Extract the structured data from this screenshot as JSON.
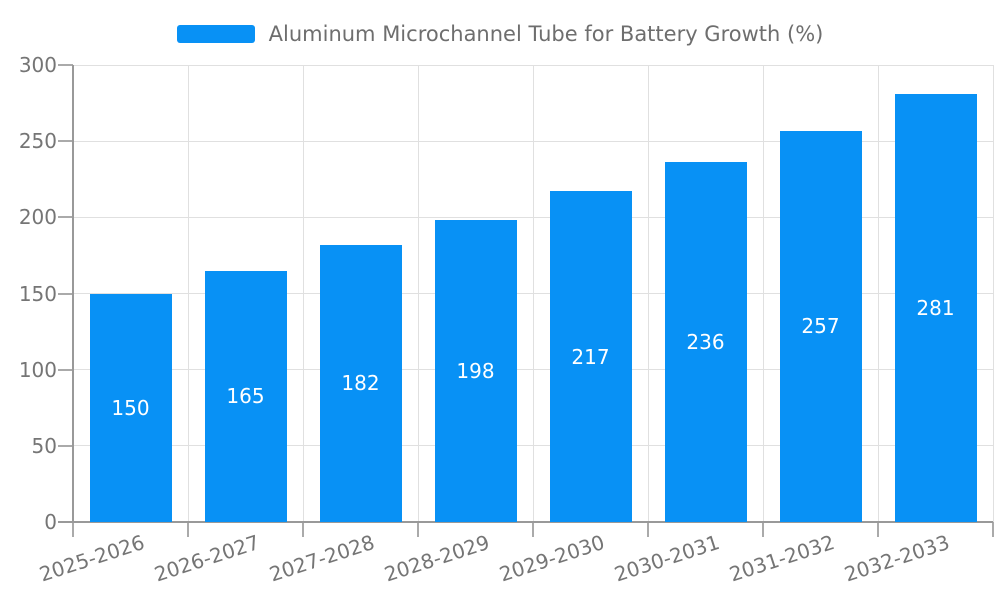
{
  "legend": {
    "label": "Aluminum Microchannel Tube for Battery Growth (%)"
  },
  "chart_data": {
    "type": "bar",
    "title": "Aluminum Microchannel Tube for Battery Growth (%)",
    "series_name": "Aluminum Microchannel Tube for Battery Growth (%)",
    "categories": [
      "2025-2026",
      "2026-2027",
      "2027-2028",
      "2028-2029",
      "2029-2030",
      "2030-2031",
      "2031-2032",
      "2032-2033"
    ],
    "values": [
      150,
      165,
      182,
      198,
      217,
      236,
      257,
      281
    ],
    "xlabel": "",
    "ylabel": "",
    "ylim": [
      0,
      300
    ],
    "yticks": [
      0,
      50,
      100,
      150,
      200,
      250,
      300
    ],
    "grid": "horizontal and vertical light gridlines",
    "legend_position": "top-center",
    "value_labels": "white, centered inside bars",
    "x_tick_label_rotation_deg": -18
  },
  "colors": {
    "bar": "#0891f5",
    "grid_line": "#e0e0e0",
    "axis_line": "#999999",
    "tick": "#aaaaaa",
    "axis_label": "#757575",
    "legend_text": "#6e6e6e",
    "value_label": "#ffffff",
    "background": "#ffffff"
  }
}
